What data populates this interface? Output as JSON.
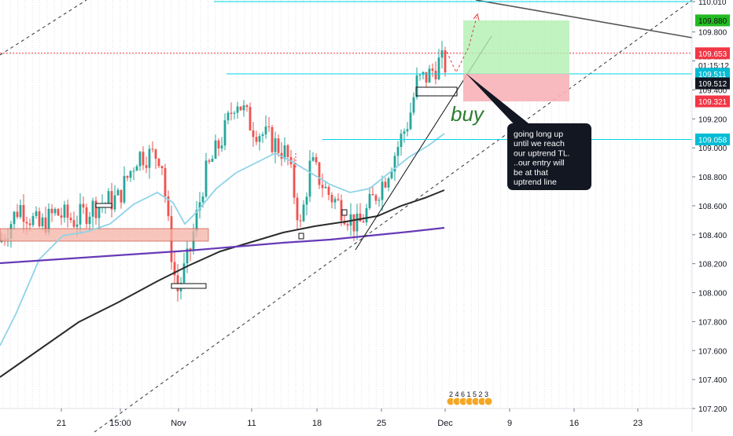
{
  "chart_data": {
    "type": "candlestick",
    "title": "",
    "xlabel": "",
    "ylabel": "",
    "ylim": [
      107.2,
      110.01
    ],
    "grid": true,
    "y_ticks": [
      "110.010",
      "109.800",
      "109.600",
      "109.400",
      "109.200",
      "109.000",
      "108.800",
      "108.600",
      "108.400",
      "108.200",
      "108.000",
      "107.800",
      "107.600",
      "107.400",
      "107.200"
    ],
    "x_ticks": [
      "21",
      "15:00",
      "Nov",
      "11",
      "18",
      "25",
      "Dec",
      "9",
      "16",
      "23"
    ],
    "price_badges": [
      {
        "label": "109.880",
        "value": 109.88,
        "color": "#22bb22",
        "text_color": "#111111"
      },
      {
        "label": "109.653",
        "value": 109.653,
        "color": "#f23645",
        "text_color": "#ffffff"
      },
      {
        "label": "01:15:12",
        "value": 109.57,
        "color": "#ffffff",
        "text_color": "#131722"
      },
      {
        "label": "109.511",
        "value": 109.511,
        "color": "#00bcd4",
        "text_color": "#ffffff"
      },
      {
        "label": "109.512",
        "value": 109.445,
        "color": "#131722",
        "text_color": "#ffffff"
      },
      {
        "label": "109.321",
        "value": 109.321,
        "color": "#f23645",
        "text_color": "#ffffff"
      },
      {
        "label": "109.058",
        "value": 109.058,
        "color": "#00bcd4",
        "text_color": "#ffffff"
      }
    ],
    "horizontal_levels": [
      {
        "value": 110.01,
        "color": "#00d4e8",
        "style": "solid"
      },
      {
        "value": 109.653,
        "color": "#f23645",
        "style": "dotted"
      },
      {
        "value": 109.511,
        "color": "#00d4e8",
        "style": "solid"
      },
      {
        "value": 109.058,
        "color": "#00d4e8",
        "style": "solid"
      }
    ],
    "annotations": {
      "buy_label": "buy",
      "callout_text": "going long up until we reach our uptrend TL. ..our entry will be at that uptrend line",
      "event_icons_text": "2 4 6 1 5 2 3"
    },
    "colors": {
      "up": "#26a69a",
      "down": "#ef5350",
      "ma_fast": "#8fd3e8",
      "ma_slow": "#2b2b2b",
      "ma_long": "#673ab7",
      "zone": "#f4b1a6",
      "profit": "#b2f0b2",
      "loss": "#f7b3b8",
      "buy": "#2e7d32"
    }
  }
}
